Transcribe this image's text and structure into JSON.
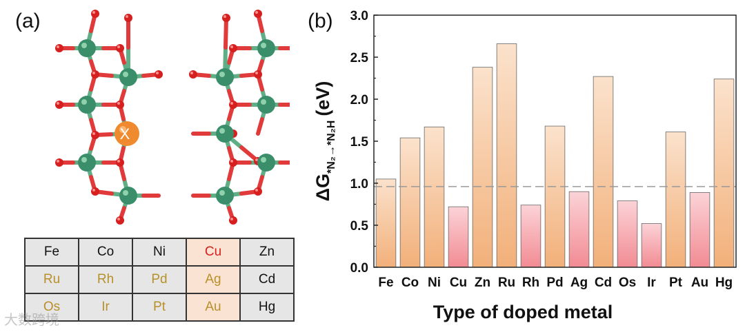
{
  "panel_a": {
    "label": "(a)",
    "dopant_symbol": "X",
    "colors": {
      "metal_atom": "#3a8f6a",
      "oxygen_atom": "#d61f1f",
      "bond_metal": "#5fae86",
      "bond_oxygen": "#e03a3a",
      "dopant": "#f08a2e"
    },
    "table": [
      [
        {
          "text": "Fe",
          "color": "#111111",
          "bg": "#e6e6e6"
        },
        {
          "text": "Co",
          "color": "#111111",
          "bg": "#e6e6e6"
        },
        {
          "text": "Ni",
          "color": "#111111",
          "bg": "#e6e6e6"
        },
        {
          "text": "Cu",
          "color": "#d61f1f",
          "bg": "#fbe3d3"
        },
        {
          "text": "Zn",
          "color": "#111111",
          "bg": "#e6e6e6"
        }
      ],
      [
        {
          "text": "Ru",
          "color": "#b8902a",
          "bg": "#e6e6e6"
        },
        {
          "text": "Rh",
          "color": "#b8902a",
          "bg": "#e6e6e6"
        },
        {
          "text": "Pd",
          "color": "#b8902a",
          "bg": "#e6e6e6"
        },
        {
          "text": "Ag",
          "color": "#b8902a",
          "bg": "#fbe3d3"
        },
        {
          "text": "Cd",
          "color": "#111111",
          "bg": "#e6e6e6"
        }
      ],
      [
        {
          "text": "Os",
          "color": "#b8902a",
          "bg": "#e6e6e6"
        },
        {
          "text": "Ir",
          "color": "#b8902a",
          "bg": "#e6e6e6"
        },
        {
          "text": "Pt",
          "color": "#b8902a",
          "bg": "#e6e6e6"
        },
        {
          "text": "Au",
          "color": "#b8902a",
          "bg": "#fbe3d3"
        },
        {
          "text": "Hg",
          "color": "#111111",
          "bg": "#e6e6e6"
        }
      ]
    ]
  },
  "panel_b": {
    "label": "(b)"
  },
  "chart_data": {
    "type": "bar",
    "categories": [
      "Fe",
      "Co",
      "Ni",
      "Cu",
      "Zn",
      "Ru",
      "Rh",
      "Pd",
      "Ag",
      "Cd",
      "Os",
      "Ir",
      "Pt",
      "Au",
      "Hg"
    ],
    "values": [
      1.05,
      1.54,
      1.67,
      0.72,
      2.38,
      2.66,
      0.74,
      1.68,
      0.9,
      2.27,
      0.79,
      0.52,
      1.61,
      0.89,
      2.24
    ],
    "bar_groups": [
      "orange",
      "orange",
      "orange",
      "pink",
      "orange",
      "orange",
      "pink",
      "orange",
      "pink",
      "orange",
      "pink",
      "pink",
      "orange",
      "pink",
      "orange"
    ],
    "colors": {
      "orange_top": "#fbe2cc",
      "orange_bottom": "#f2b07a",
      "pink_top": "#fbd3d7",
      "pink_bottom": "#f28b93",
      "reference_line": "#999999"
    },
    "ylim": [
      0.0,
      3.0
    ],
    "yticks": [
      "0.0",
      "0.5",
      "1.0",
      "1.5",
      "2.0",
      "2.5",
      "3.0"
    ],
    "reference_line": 0.96,
    "xlabel": "Type of doped metal",
    "ylabel": {
      "prefix": "ΔG",
      "sub": "*N₂→*N₂H",
      "unit": "(eV)"
    }
  },
  "watermark": "大数跨境"
}
